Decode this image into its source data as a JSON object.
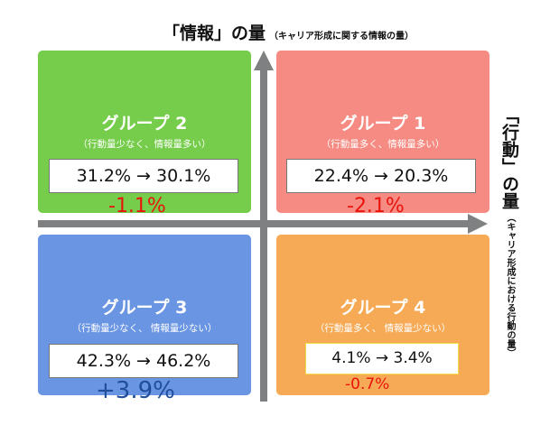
{
  "top_axis": {
    "title": "「情報」の量",
    "subtitle": "（キャリア形成に関する情報の量）"
  },
  "right_axis": {
    "title": "「行動」の量",
    "subtitle": "（キャリア形成における行動の量）"
  },
  "quadrants": {
    "group2": {
      "title": "グループ 2",
      "desc": "（行動量少なく、情報量多い）",
      "values": "31.2% → 30.1%",
      "delta": "-1.1%"
    },
    "group1": {
      "title": "グループ 1",
      "desc": "（行動量多く、情報量多い）",
      "values": "22.4% → 20.3%",
      "delta": "-2.1%"
    },
    "group3": {
      "title": "グループ 3",
      "desc": "（行動量少なく、 情報量少ない）",
      "values": "42.3% → 46.2%",
      "delta": "+3.9%"
    },
    "group4": {
      "title": "グループ 4",
      "desc": "（行動量多く、 情報量少ない）",
      "values": "4.1% → 3.4%",
      "delta": "-0.7%"
    }
  },
  "colors": {
    "group1": "#f58b82",
    "group2": "#76cd4b",
    "group3": "#6a95e2",
    "group4": "#f6aa55",
    "axis": "#7f8081",
    "negative": "#e8140c",
    "positive": "#1f4e9c"
  }
}
